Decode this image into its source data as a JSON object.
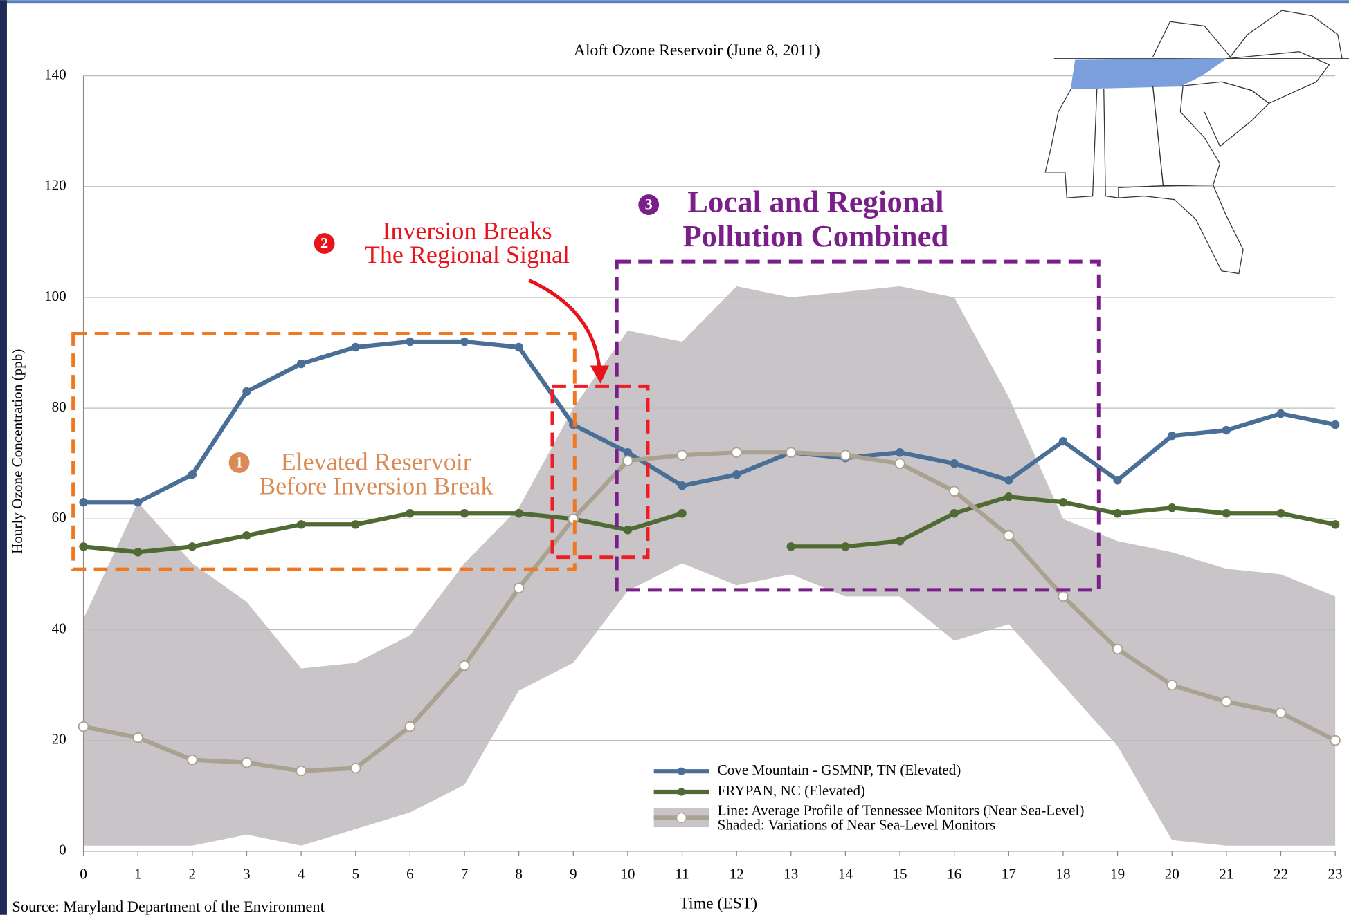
{
  "chart_data": {
    "type": "line",
    "title": "Aloft Ozone Reservoir (June 8, 2011)",
    "xlabel": "Time (EST)",
    "ylabel": "Hourly Ozone Concentration (ppb)",
    "source": "Source: Maryland Department of the Environment",
    "x": [
      0,
      1,
      2,
      3,
      4,
      5,
      6,
      7,
      8,
      9,
      10,
      11,
      12,
      13,
      14,
      15,
      16,
      17,
      18,
      19,
      20,
      21,
      22,
      23
    ],
    "xlim": [
      0,
      23
    ],
    "xticks": [
      0,
      1,
      2,
      3,
      4,
      5,
      6,
      7,
      8,
      9,
      10,
      11,
      12,
      13,
      14,
      15,
      16,
      17,
      18,
      19,
      20,
      21,
      22,
      23
    ],
    "ylim": [
      0,
      140
    ],
    "yticks": [
      0,
      20,
      40,
      60,
      80,
      100,
      120,
      140
    ],
    "grid": true,
    "series": [
      {
        "name": "Cove Mountain - GSMNP, TN (Elevated)",
        "color": "#4a6f96",
        "marker": "filled",
        "values": [
          63,
          63,
          68,
          83,
          88,
          91,
          92,
          92,
          91,
          77,
          72,
          66,
          68,
          72,
          71,
          72,
          70,
          67,
          74,
          67,
          75,
          76,
          79,
          77
        ]
      },
      {
        "name": "FRYPAN, NC (Elevated)",
        "color": "#506a34",
        "marker": "filled",
        "values": [
          55,
          54,
          55,
          57,
          59,
          59,
          61,
          61,
          61,
          60,
          58,
          61,
          null,
          55,
          55,
          56,
          61,
          64,
          63,
          61,
          62,
          61,
          61,
          59
        ]
      },
      {
        "name": "Line: Average Profile of Tennessee Monitors (Near Sea-Level)",
        "color": "#aaa290",
        "marker": "open",
        "values": [
          22.5,
          20.5,
          16.5,
          16,
          14.5,
          15,
          22.5,
          33.5,
          47.5,
          60,
          70.5,
          71.5,
          72,
          72,
          71.5,
          70,
          65,
          57,
          46,
          36.5,
          30,
          27,
          25,
          20
        ]
      }
    ],
    "band": {
      "name": "Shaded: Variations of Near Sea-Level Monitors",
      "color": "#c9c4c7",
      "upper": [
        42,
        63,
        52,
        45,
        33,
        34,
        39,
        52,
        62,
        80,
        94,
        92,
        102,
        100,
        101,
        102,
        100,
        82,
        60,
        56,
        54,
        51,
        50,
        46
      ],
      "lower": [
        1,
        1,
        1,
        3,
        1,
        4,
        7,
        12,
        29,
        34,
        47,
        52,
        48,
        50,
        46,
        46,
        38,
        41,
        30,
        19,
        2,
        1,
        1,
        1
      ]
    },
    "annotations": [
      {
        "number": 1,
        "lines": [
          "Elevated Reservoir",
          "Before Inversion Break"
        ],
        "color": "#d98a55",
        "box_color": "#f07820"
      },
      {
        "number": 2,
        "lines": [
          "Inversion Breaks",
          "The Regional Signal"
        ],
        "color": "#e8141c",
        "box_color": "#ee1c24"
      },
      {
        "number": 3,
        "lines": [
          "Local and Regional",
          "Pollution Combined"
        ],
        "color": "#7a1f8a",
        "box_color": "#7a1f8a"
      }
    ]
  }
}
